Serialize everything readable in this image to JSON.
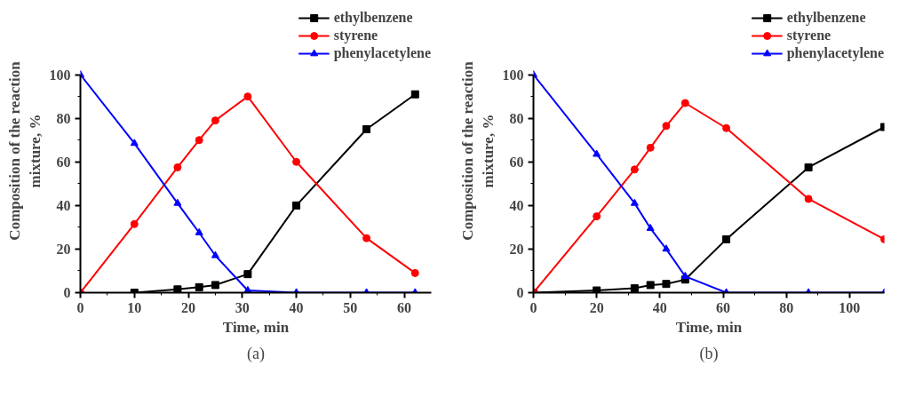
{
  "chart_data": [
    {
      "type": "line",
      "xlabel": "Time, min",
      "ylabel": "Composition of the reaction\nmixture, %",
      "annotations": [
        "(a)"
      ],
      "xlim": [
        0,
        65
      ],
      "ylim": [
        0,
        100
      ],
      "xticks": [
        0,
        10,
        20,
        30,
        40,
        50,
        60
      ],
      "yticks": [
        0,
        20,
        40,
        60,
        80,
        100
      ],
      "grid": false,
      "legend": "top right",
      "line_style": "solid",
      "series": [
        {
          "name": "ethylbenzene",
          "color": "#000000",
          "marker": "square",
          "x": [
            10,
            18,
            22,
            25,
            31,
            40,
            53,
            62
          ],
          "values": [
            0,
            1.5,
            2.5,
            3.5,
            8.5,
            40,
            75,
            91
          ]
        },
        {
          "name": "styrene",
          "color": "#ff0000",
          "marker": "circle",
          "x": [
            0,
            10,
            18,
            22,
            25,
            31,
            40,
            53,
            62
          ],
          "values": [
            0,
            31.5,
            57.5,
            70,
            79,
            90,
            60,
            25,
            9
          ]
        },
        {
          "name": "phenylacetylene",
          "color": "#0000ff",
          "marker": "triangle",
          "x": [
            0,
            10,
            18,
            22,
            25,
            31,
            40,
            53,
            62
          ],
          "values": [
            100,
            68.5,
            41,
            27.5,
            17,
            1,
            0,
            0,
            0
          ]
        }
      ]
    },
    {
      "type": "line",
      "xlabel": "Time, min",
      "ylabel": "Composition of the reaction\nmixture, %",
      "annotations": [
        "(b)"
      ],
      "xlim": [
        0,
        111
      ],
      "ylim": [
        0,
        100
      ],
      "xticks": [
        0,
        20,
        40,
        60,
        80,
        100
      ],
      "yticks": [
        0,
        20,
        40,
        60,
        80,
        100
      ],
      "grid": false,
      "legend": "top right",
      "line_style": "solid",
      "series": [
        {
          "name": "ethylbenzene",
          "color": "#000000",
          "marker": "square",
          "x": [
            0,
            20,
            32,
            37,
            42,
            48,
            61,
            87,
            111
          ],
          "values": [
            0,
            1,
            2,
            3.5,
            4,
            6,
            24.5,
            57.5,
            76
          ]
        },
        {
          "name": "styrene",
          "color": "#ff0000",
          "marker": "circle",
          "x": [
            0,
            20,
            32,
            37,
            42,
            48,
            61,
            87,
            111
          ],
          "values": [
            0,
            35,
            56.5,
            66.5,
            76.5,
            87,
            75.5,
            43,
            24.5
          ]
        },
        {
          "name": "phenylacetylene",
          "color": "#0000ff",
          "marker": "triangle",
          "x": [
            0,
            20,
            32,
            37,
            42,
            48,
            61,
            87,
            111
          ],
          "values": [
            100,
            63.5,
            41,
            29.5,
            20,
            7.5,
            0,
            0,
            0
          ]
        }
      ]
    }
  ]
}
